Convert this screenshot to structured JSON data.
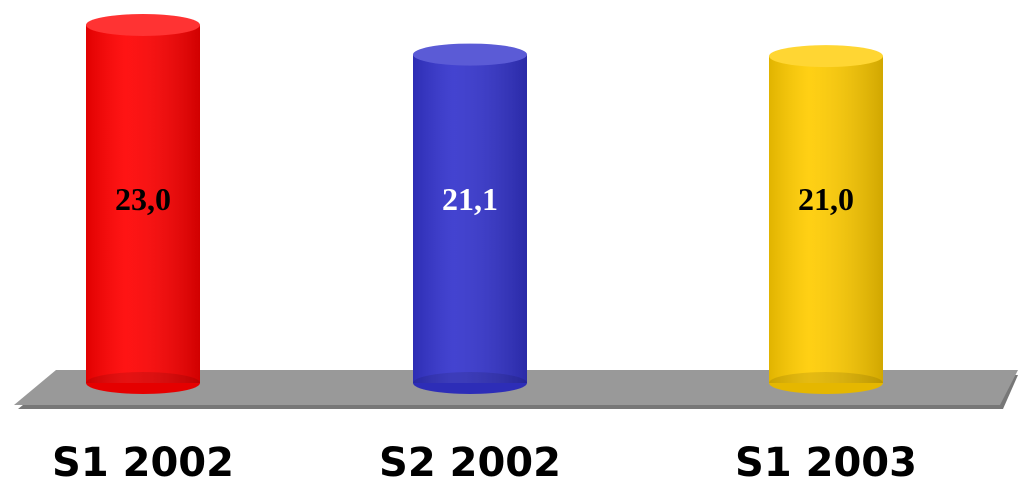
{
  "chart_data": {
    "type": "bar",
    "categories": [
      "S1 2002",
      "S2 2002",
      "S1 2003"
    ],
    "values": [
      23,
      21.1,
      21
    ],
    "value_labels": [
      "23,0",
      "21,1",
      "21,0"
    ],
    "colors": [
      "#ff0000",
      "#3333cc",
      "#ffcc00"
    ],
    "label_colors": [
      "#000000",
      "#ffffff",
      "#000000"
    ]
  }
}
